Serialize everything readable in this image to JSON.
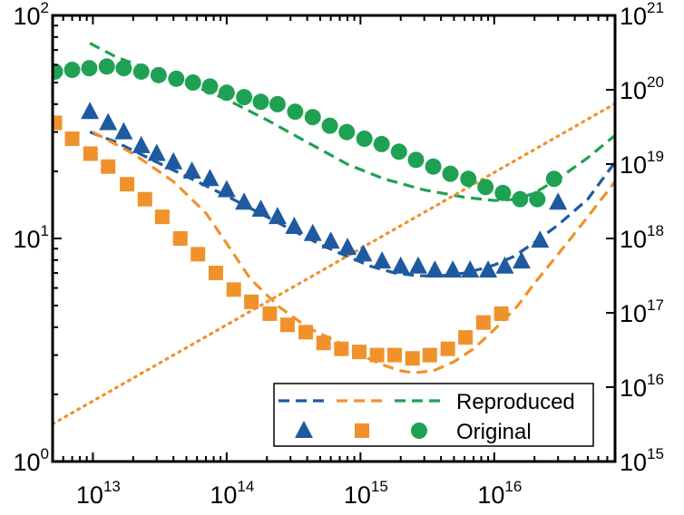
{
  "chart_data": {
    "type": "scatter",
    "title": "",
    "xlabel": "",
    "ylabel": "",
    "y2label": "",
    "xscale": "log",
    "yscale": "log",
    "y2scale": "log",
    "xlim": [
      5000000000000.0,
      8e+16
    ],
    "ylim": [
      1,
      100
    ],
    "y2lim": [
      1000000000000000.0,
      1e+21
    ],
    "grid": false,
    "legend": {
      "placement": "bottom-right",
      "entries": [
        "Reproduced",
        "Original"
      ]
    },
    "x_ticks": [
      {
        "base": "10",
        "exp": "13",
        "value": 10000000000000.0
      },
      {
        "base": "10",
        "exp": "14",
        "value": 100000000000000.0
      },
      {
        "base": "10",
        "exp": "15",
        "value": 1000000000000000.0
      },
      {
        "base": "10",
        "exp": "16",
        "value": 1e+16
      }
    ],
    "y_ticks": [
      {
        "base": "10",
        "exp": "0",
        "value": 1
      },
      {
        "base": "10",
        "exp": "1",
        "value": 10
      },
      {
        "base": "10",
        "exp": "2",
        "value": 100
      }
    ],
    "y2_ticks": [
      {
        "base": "10",
        "exp": "15",
        "value": 1000000000000000.0
      },
      {
        "base": "10",
        "exp": "16",
        "value": 1e+16
      },
      {
        "base": "10",
        "exp": "17",
        "value": 1e+17
      },
      {
        "base": "10",
        "exp": "18",
        "value": 1e+18
      },
      {
        "base": "10",
        "exp": "19",
        "value": 1e+19
      },
      {
        "base": "10",
        "exp": "20",
        "value": 1e+20
      },
      {
        "base": "10",
        "exp": "21",
        "value": 1e+21
      }
    ],
    "colors": {
      "blue": "#1f5aa0",
      "orange": "#f0922b",
      "green": "#1fa154"
    },
    "series": [
      {
        "group": "Original",
        "color": "blue",
        "marker": "triangle",
        "axis": "left",
        "x": [
          9500000000000.0,
          13000000000000.0,
          17000000000000.0,
          23000000000000.0,
          30000000000000.0,
          40000000000000.0,
          55000000000000.0,
          75000000000000.0,
          100000000000000.0,
          135000000000000.0,
          180000000000000.0,
          240000000000000.0,
          320000000000000.0,
          440000000000000.0,
          600000000000000.0,
          800000000000000.0,
          1050000000000000.0,
          1450000000000000.0,
          2000000000000000.0,
          2700000000000000.0,
          3600000000000000.0,
          4900000000000000.0,
          6600000000000000.0,
          9000000000000000.0,
          1.2e+16,
          1.6e+16,
          2.2e+16,
          3e+16
        ],
        "y": [
          37,
          33,
          30,
          26,
          24,
          22,
          20,
          18.5,
          16.5,
          14.5,
          13.5,
          12.5,
          11.3,
          10.5,
          9.7,
          9.1,
          8.5,
          7.9,
          7.5,
          7.5,
          7.2,
          7.2,
          7.2,
          7.2,
          7.5,
          7.9,
          9.8,
          14.5
        ]
      },
      {
        "group": "Original",
        "color": "orange",
        "marker": "square",
        "axis": "left",
        "x": [
          5200000000000.0,
          7000000000000.0,
          9600000000000.0,
          13000000000000.0,
          18000000000000.0,
          24500000000000.0,
          33000000000000.0,
          45000000000000.0,
          61000000000000.0,
          83000000000000.0,
          113000000000000.0,
          153000000000000.0,
          210000000000000.0,
          285000000000000.0,
          390000000000000.0,
          530000000000000.0,
          720000000000000.0,
          980000000000000.0,
          1330000000000000.0,
          1800000000000000.0,
          2450000000000000.0,
          3300000000000000.0,
          4500000000000000.0,
          6100000000000000.0,
          8300000000000000.0,
          1.13e+16
        ],
        "y": [
          33,
          28,
          24,
          21,
          17.5,
          15,
          12.5,
          10,
          8.5,
          7,
          5.9,
          5.2,
          4.6,
          4.1,
          3.8,
          3.4,
          3.2,
          3.1,
          3.0,
          3.0,
          2.9,
          3.0,
          3.2,
          3.6,
          4.2,
          4.6
        ]
      },
      {
        "group": "Original",
        "color": "green",
        "marker": "circle",
        "axis": "left",
        "x": [
          5200000000000.0,
          7000000000000.0,
          9400000000000.0,
          12700000000000.0,
          17000000000000.0,
          23000000000000.0,
          31000000000000.0,
          42000000000000.0,
          56000000000000.0,
          75000000000000.0,
          100000000000000.0,
          135000000000000.0,
          180000000000000.0,
          240000000000000.0,
          325000000000000.0,
          440000000000000.0,
          590000000000000.0,
          790000000000000.0,
          1070000000000000.0,
          1440000000000000.0,
          1940000000000000.0,
          2600000000000000.0,
          3500000000000000.0,
          4700000000000000.0,
          6400000000000000.0,
          8600000000000000.0,
          1.16e+16,
          1.56e+16,
          2.1e+16,
          2.8e+16
        ],
        "y": [
          56,
          57,
          58,
          59,
          58,
          56,
          54,
          52,
          50,
          48,
          45,
          43,
          41,
          40,
          37,
          35,
          32,
          30,
          28,
          26.5,
          24.5,
          22.5,
          21,
          19.5,
          18.5,
          17,
          16,
          15,
          15,
          18.5
        ]
      },
      {
        "group": "Reproduced",
        "color": "blue",
        "line": "dashed",
        "axis": "left",
        "x": [
          9500000000000.0,
          15000000000000.0,
          30000000000000.0,
          60000000000000.0,
          100000000000000.0,
          200000000000000.0,
          300000000000000.0,
          500000000000000.0,
          800000000000000.0,
          1200000000000000.0,
          1800000000000000.0,
          2700000000000000.0,
          4000000000000000.0,
          6000000000000000.0,
          8000000000000000.0,
          1e+16,
          1.4e+16,
          2e+16,
          3e+16,
          5e+16,
          8e+16
        ],
        "y": [
          30,
          27,
          22,
          18,
          15.5,
          12.5,
          11,
          9.4,
          8.3,
          7.5,
          7.0,
          6.8,
          6.8,
          7.0,
          7.3,
          7.6,
          8.3,
          9.6,
          11.5,
          15,
          22
        ]
      },
      {
        "group": "Reproduced",
        "color": "orange",
        "line": "dashed",
        "axis": "left",
        "x": [
          10000000000000.0,
          20000000000000.0,
          40000000000000.0,
          70000000000000.0,
          100000000000000.0,
          150000000000000.0,
          250000000000000.0,
          400000000000000.0,
          700000000000000.0,
          1000000000000000.0,
          1500000000000000.0,
          2000000000000000.0,
          2500000000000000.0,
          3500000000000000.0,
          5000000000000000.0,
          7000000000000000.0,
          1e+16,
          1.5e+16,
          2e+16,
          3e+16,
          5e+16,
          8e+16
        ],
        "y": [
          30,
          24,
          18,
          13,
          9.5,
          6.6,
          4.9,
          4.0,
          3.4,
          3.0,
          2.7,
          2.55,
          2.5,
          2.55,
          2.8,
          3.2,
          3.9,
          5.0,
          6.3,
          8.5,
          12.5,
          18
        ]
      },
      {
        "group": "Reproduced",
        "color": "green",
        "line": "dashed",
        "axis": "left",
        "x": [
          9500000000000.0,
          15000000000000.0,
          25000000000000.0,
          40000000000000.0,
          70000000000000.0,
          100000000000000.0,
          200000000000000.0,
          400000000000000.0,
          800000000000000.0,
          1500000000000000.0,
          3000000000000000.0,
          6000000000000000.0,
          1e+16,
          1.5e+16,
          2e+16,
          3e+16,
          5e+16,
          8e+16
        ],
        "y": [
          75,
          65,
          58,
          52,
          46,
          42,
          34,
          27,
          21.5,
          18.5,
          16.5,
          15.3,
          14.8,
          15.0,
          16,
          18.5,
          23,
          29
        ]
      },
      {
        "group": "",
        "color": "orange",
        "line": "dotted",
        "axis": "right",
        "x": [
          5000000000000.0,
          8e+16
        ],
        "y": [
          3200000000000000.0,
          6.5e+19
        ]
      }
    ]
  }
}
